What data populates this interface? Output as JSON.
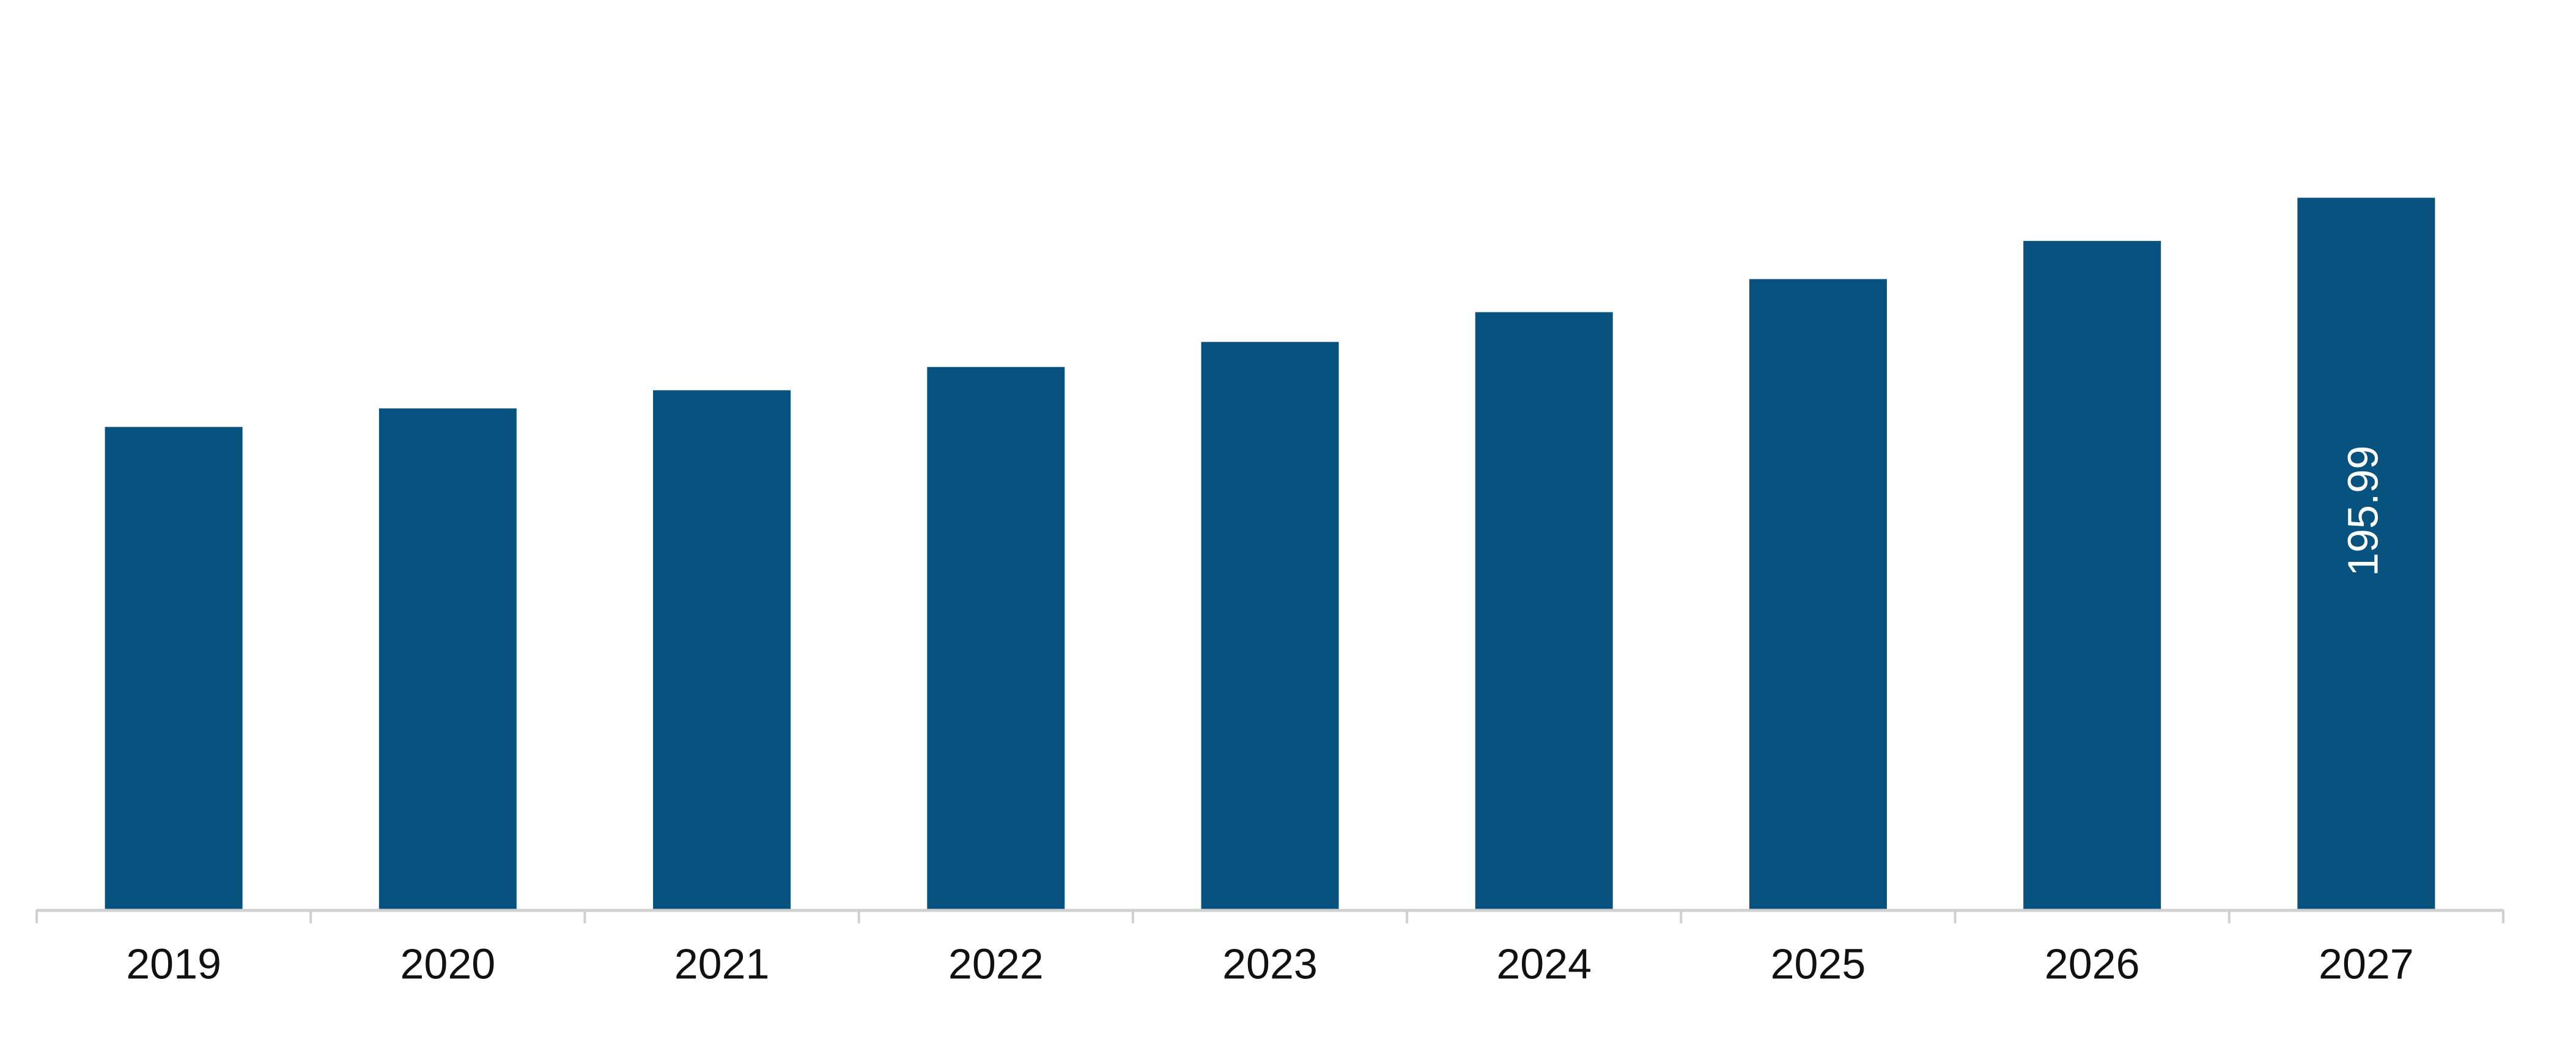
{
  "chart_data": {
    "type": "bar",
    "categories": [
      "2019",
      "2020",
      "2021",
      "2022",
      "2023",
      "2024",
      "2025",
      "2026",
      "2027"
    ],
    "values": [
      132.9,
      138.0,
      143.0,
      149.4,
      156.3,
      164.5,
      173.6,
      184.1,
      195.99
    ],
    "value_labels": [
      null,
      null,
      null,
      null,
      null,
      null,
      null,
      null,
      "195.99"
    ],
    "color": "#08527f"
  }
}
